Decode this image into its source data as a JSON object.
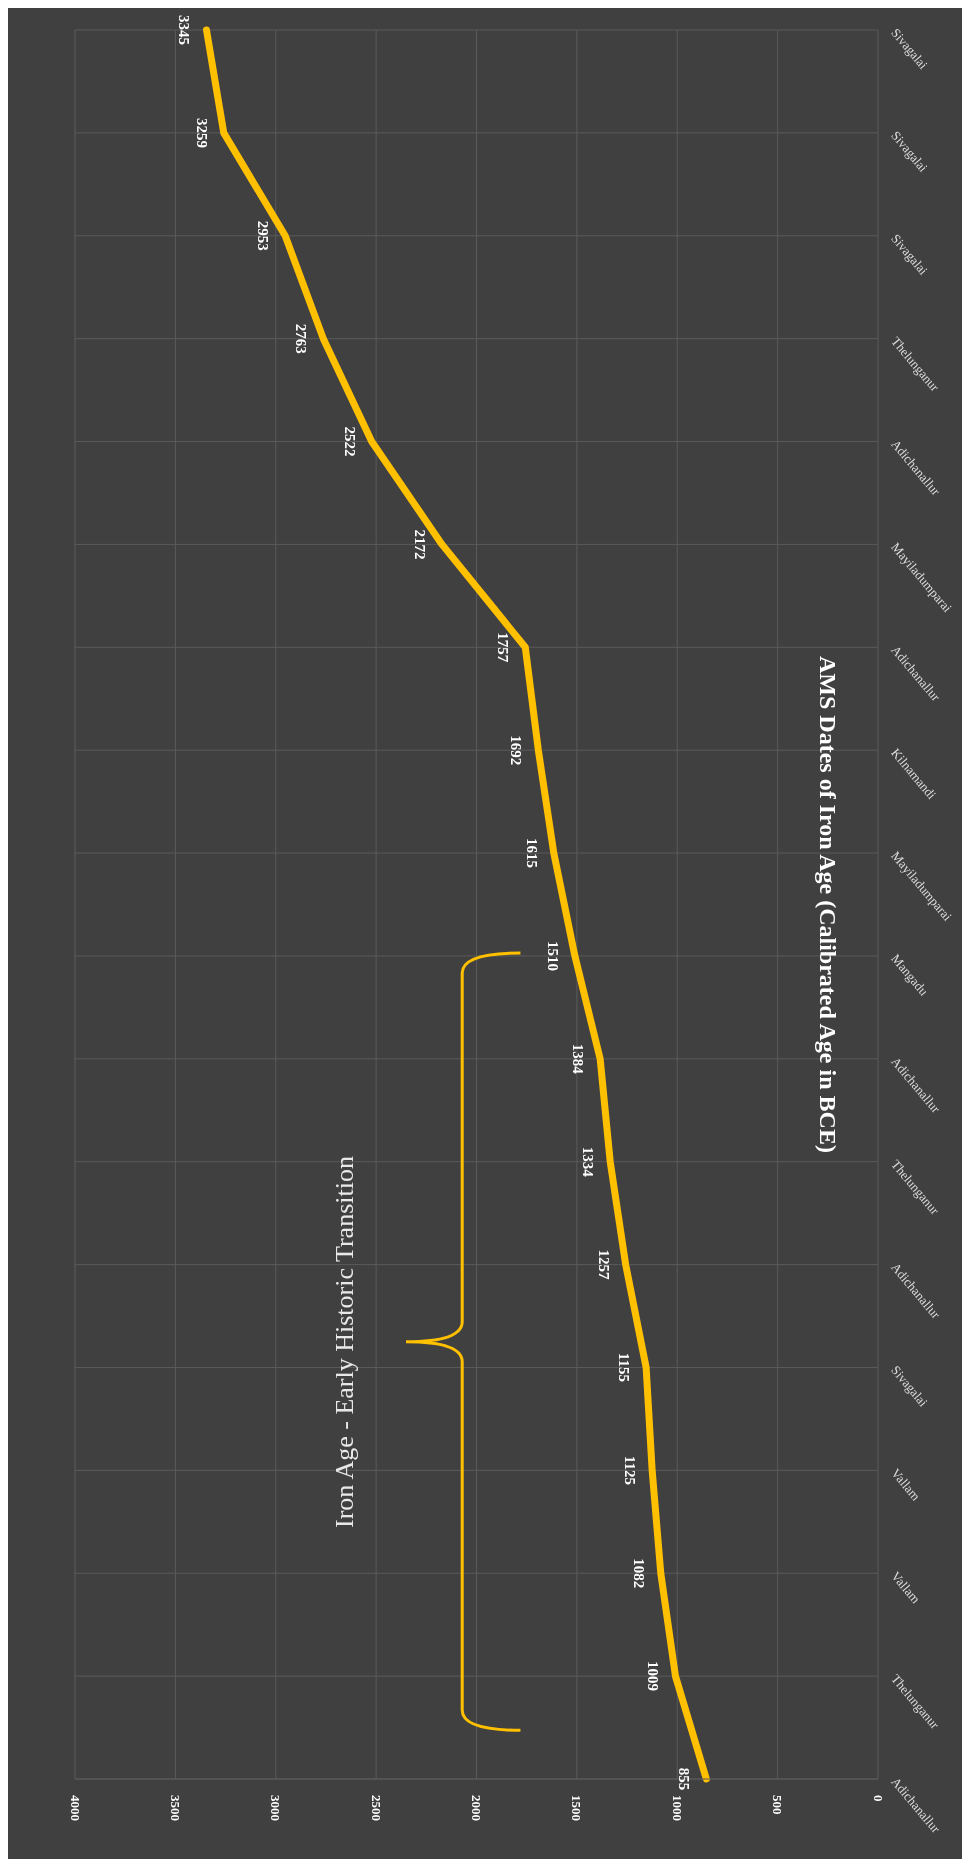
{
  "chart_data": {
    "type": "line",
    "title": "AMS Dates of Iron Age (Calibrated Age in BCE)",
    "categories": [
      "Sivagalai",
      "Sivagalai",
      "Sivagalai",
      "Thelunganur",
      "Adichanallur",
      "Mayiladumparai",
      "Adichanallur",
      "Kilnamandi",
      "Mayiladumparai",
      "Mangadu",
      "Adichanallur",
      "Thelunganur",
      "Adichanallur",
      "Sivagalai",
      "Vallam",
      "Vallam",
      "Thelunganur",
      "Adichanallur"
    ],
    "series": [
      {
        "color": "#ffc000",
        "values": [
          3345,
          3259,
          2953,
          2763,
          2522,
          2172,
          1757,
          1692,
          1615,
          1510,
          1384,
          1334,
          1257,
          1155,
          1125,
          1082,
          1009,
          855
        ]
      }
    ],
    "orientation": "horizontal",
    "xlim": [
      4000,
      0
    ],
    "xticks": [
      0,
      500,
      1000,
      1500,
      2000,
      2500,
      3000,
      3500,
      4000
    ],
    "grid": true,
    "data_labels": true,
    "marker": "none",
    "line_style": "solid",
    "legend": false,
    "annotations": [
      "Iron Age - Early Historic Transition"
    ]
  }
}
